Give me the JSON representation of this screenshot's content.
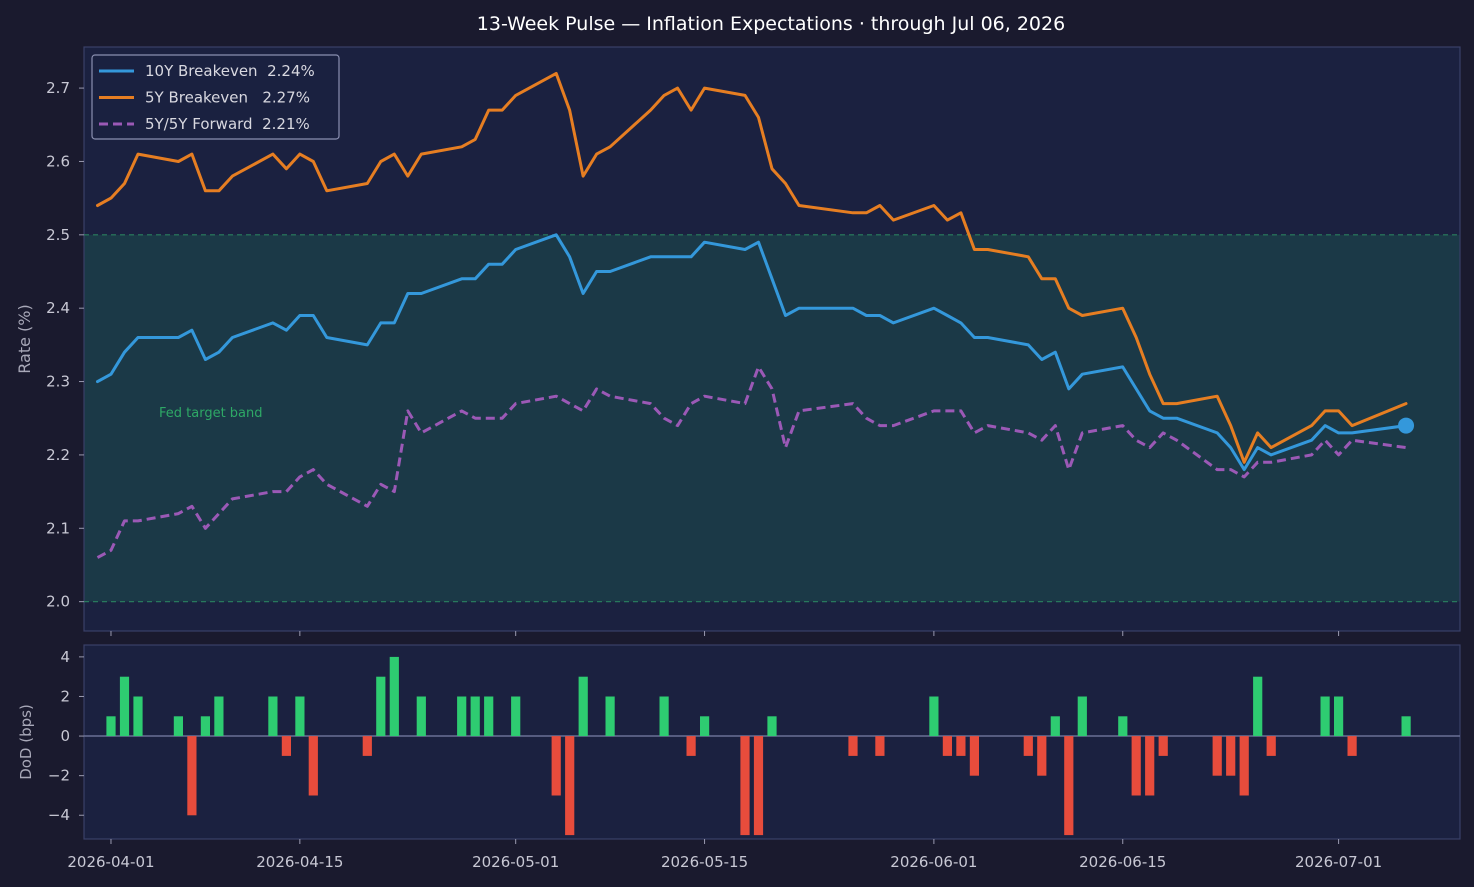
{
  "chart_data": [
    {
      "type": "line",
      "title": "13-Week Pulse — Inflation Expectations  ·  through Jul 06, 2026",
      "xlabel": "",
      "ylabel": "Rate (%)",
      "ylim": [
        1.96,
        2.756
      ],
      "xlim": [
        "2026-03-30",
        "2026-07-10"
      ],
      "y_ticks": [
        "2.0",
        "2.1",
        "2.2",
        "2.3",
        "2.4",
        "2.5",
        "2.6",
        "2.7"
      ],
      "x_ticks": [
        "2026-04-01",
        "2026-04-15",
        "2026-05-01",
        "2026-05-15",
        "2026-06-01",
        "2026-06-15",
        "2026-07-01"
      ],
      "legend_position": "top-left",
      "band": {
        "label": "Fed target band",
        "from": 2.0,
        "to": 2.5,
        "color": "#1f6f5a"
      },
      "x": [
        "2026-03-31",
        "2026-04-01",
        "2026-04-02",
        "2026-04-03",
        "2026-04-06",
        "2026-04-07",
        "2026-04-08",
        "2026-04-09",
        "2026-04-10",
        "2026-04-13",
        "2026-04-14",
        "2026-04-15",
        "2026-04-16",
        "2026-04-17",
        "2026-04-20",
        "2026-04-21",
        "2026-04-22",
        "2026-04-23",
        "2026-04-24",
        "2026-04-27",
        "2026-04-28",
        "2026-04-29",
        "2026-04-30",
        "2026-05-01",
        "2026-05-04",
        "2026-05-05",
        "2026-05-06",
        "2026-05-07",
        "2026-05-08",
        "2026-05-11",
        "2026-05-12",
        "2026-05-13",
        "2026-05-14",
        "2026-05-15",
        "2026-05-18",
        "2026-05-19",
        "2026-05-20",
        "2026-05-21",
        "2026-05-22",
        "2026-05-26",
        "2026-05-27",
        "2026-05-28",
        "2026-05-29",
        "2026-06-01",
        "2026-06-02",
        "2026-06-03",
        "2026-06-04",
        "2026-06-05",
        "2026-06-08",
        "2026-06-09",
        "2026-06-10",
        "2026-06-11",
        "2026-06-12",
        "2026-06-15",
        "2026-06-16",
        "2026-06-17",
        "2026-06-18",
        "2026-06-19",
        "2026-06-22",
        "2026-06-23",
        "2026-06-24",
        "2026-06-25",
        "2026-06-26",
        "2026-06-29",
        "2026-06-30",
        "2026-07-01",
        "2026-07-02",
        "2026-07-06"
      ],
      "series": [
        {
          "name": "10Y Breakeven",
          "label": "10Y Breakeven  2.24%",
          "color": "#3498db",
          "style": "solid",
          "values": [
            2.3,
            2.31,
            2.34,
            2.36,
            2.36,
            2.37,
            2.33,
            2.34,
            2.36,
            2.38,
            2.37,
            2.39,
            2.39,
            2.36,
            2.35,
            2.38,
            2.38,
            2.42,
            2.42,
            2.44,
            2.44,
            2.46,
            2.46,
            2.48,
            2.5,
            2.47,
            2.42,
            2.45,
            2.45,
            2.47,
            2.47,
            2.47,
            2.47,
            2.49,
            2.48,
            2.49,
            2.44,
            2.39,
            2.4,
            2.4,
            2.39,
            2.39,
            2.38,
            2.4,
            2.39,
            2.38,
            2.36,
            2.36,
            2.35,
            2.33,
            2.34,
            2.29,
            2.31,
            2.32,
            2.29,
            2.26,
            2.25,
            2.25,
            2.23,
            2.21,
            2.18,
            2.21,
            2.2,
            2.22,
            2.24,
            2.23,
            2.23,
            2.24
          ]
        },
        {
          "name": "5Y Breakeven",
          "label": "5Y Breakeven   2.27%",
          "color": "#e67e22",
          "style": "solid",
          "values": [
            2.54,
            2.55,
            2.57,
            2.61,
            2.6,
            2.61,
            2.56,
            2.56,
            2.58,
            2.61,
            2.59,
            2.61,
            2.6,
            2.56,
            2.57,
            2.6,
            2.61,
            2.58,
            2.61,
            2.62,
            2.63,
            2.67,
            2.67,
            2.69,
            2.72,
            2.67,
            2.58,
            2.61,
            2.62,
            2.67,
            2.69,
            2.7,
            2.67,
            2.7,
            2.69,
            2.66,
            2.59,
            2.57,
            2.54,
            2.53,
            2.53,
            2.54,
            2.52,
            2.54,
            2.52,
            2.53,
            2.48,
            2.48,
            2.47,
            2.44,
            2.44,
            2.4,
            2.39,
            2.4,
            2.36,
            2.31,
            2.27,
            2.27,
            2.28,
            2.24,
            2.19,
            2.23,
            2.21,
            2.24,
            2.26,
            2.26,
            2.24,
            2.27
          ]
        },
        {
          "name": "5Y/5Y Forward",
          "label": "5Y/5Y Forward  2.21%",
          "color": "#9b59b6",
          "style": "dashed",
          "values": [
            2.06,
            2.07,
            2.11,
            2.11,
            2.12,
            2.13,
            2.1,
            2.12,
            2.14,
            2.15,
            2.15,
            2.17,
            2.18,
            2.16,
            2.13,
            2.16,
            2.15,
            2.26,
            2.23,
            2.26,
            2.25,
            2.25,
            2.25,
            2.27,
            2.28,
            2.27,
            2.26,
            2.29,
            2.28,
            2.27,
            2.25,
            2.24,
            2.27,
            2.28,
            2.27,
            2.32,
            2.29,
            2.21,
            2.26,
            2.27,
            2.25,
            2.24,
            2.24,
            2.26,
            2.26,
            2.26,
            2.23,
            2.24,
            2.23,
            2.22,
            2.24,
            2.18,
            2.23,
            2.24,
            2.22,
            2.21,
            2.23,
            2.22,
            2.18,
            2.18,
            2.17,
            2.19,
            2.19,
            2.2,
            2.22,
            2.2,
            2.22,
            2.21
          ]
        }
      ],
      "last_point_marker": {
        "series": "10Y Breakeven",
        "x": "2026-07-06",
        "y": 2.24
      }
    },
    {
      "type": "bar",
      "title": "",
      "xlabel": "",
      "ylabel": "DoD (bps)",
      "ylim": [
        -5.2,
        4.6
      ],
      "y_ticks": [
        "−4",
        "−2",
        "0",
        "2",
        "4"
      ],
      "x_ticks": [
        "2026-04-01",
        "2026-04-15",
        "2026-05-01",
        "2026-05-15",
        "2026-06-01",
        "2026-06-15",
        "2026-07-01"
      ],
      "positive_color": "#2ecc71",
      "negative_color": "#e74c3c",
      "x": [
        "2026-03-31",
        "2026-04-01",
        "2026-04-02",
        "2026-04-03",
        "2026-04-06",
        "2026-04-07",
        "2026-04-08",
        "2026-04-09",
        "2026-04-10",
        "2026-04-13",
        "2026-04-14",
        "2026-04-15",
        "2026-04-16",
        "2026-04-17",
        "2026-04-20",
        "2026-04-21",
        "2026-04-22",
        "2026-04-23",
        "2026-04-24",
        "2026-04-27",
        "2026-04-28",
        "2026-04-29",
        "2026-04-30",
        "2026-05-01",
        "2026-05-04",
        "2026-05-05",
        "2026-05-06",
        "2026-05-07",
        "2026-05-08",
        "2026-05-11",
        "2026-05-12",
        "2026-05-13",
        "2026-05-14",
        "2026-05-15",
        "2026-05-18",
        "2026-05-19",
        "2026-05-20",
        "2026-05-21",
        "2026-05-22",
        "2026-05-26",
        "2026-05-27",
        "2026-05-28",
        "2026-05-29",
        "2026-06-01",
        "2026-06-02",
        "2026-06-03",
        "2026-06-04",
        "2026-06-05",
        "2026-06-08",
        "2026-06-09",
        "2026-06-10",
        "2026-06-11",
        "2026-06-12",
        "2026-06-15",
        "2026-06-16",
        "2026-06-17",
        "2026-06-18",
        "2026-06-19",
        "2026-06-22",
        "2026-06-23",
        "2026-06-24",
        "2026-06-25",
        "2026-06-26",
        "2026-06-29",
        "2026-06-30",
        "2026-07-01",
        "2026-07-02",
        "2026-07-06"
      ],
      "values": [
        0,
        1,
        3,
        2,
        1,
        -4,
        1,
        2,
        0,
        2,
        -1,
        2,
        -3,
        0,
        -1,
        3,
        4,
        0,
        2,
        2,
        2,
        2,
        0,
        2,
        -3,
        -5,
        3,
        0,
        2,
        0,
        2,
        0,
        -1,
        1,
        -5,
        -5,
        1,
        0,
        0,
        -1,
        0,
        -1,
        0,
        2,
        -1,
        -1,
        -2,
        0,
        -1,
        -2,
        1,
        -5,
        2,
        1,
        -3,
        -3,
        -1,
        0,
        -2,
        -2,
        -3,
        3,
        -1,
        0,
        2,
        2,
        -1,
        1
      ]
    }
  ]
}
